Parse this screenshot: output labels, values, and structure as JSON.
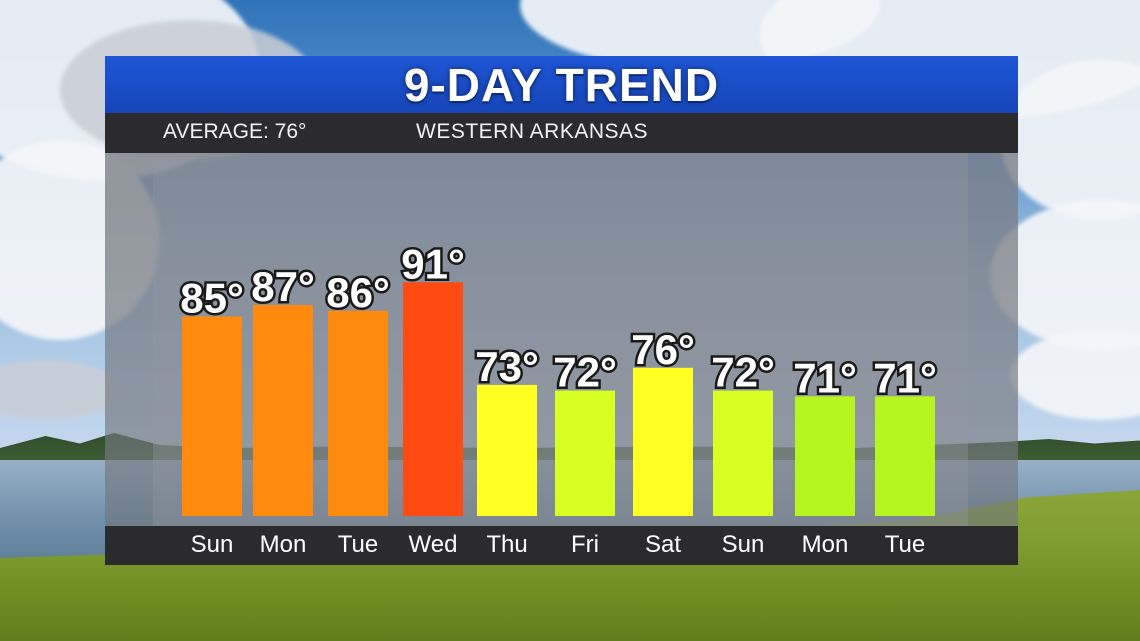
{
  "header": {
    "title": "9-DAY TREND",
    "average": "AVERAGE: 76°",
    "region": "WESTERN ARKANSAS"
  },
  "colors": {
    "title_bar": "#1f56d6",
    "sub_bar": "#2b2b2e"
  },
  "chart_data": {
    "type": "bar",
    "title": "9-DAY TREND",
    "xlabel": "",
    "ylabel": "",
    "ylim": [
      0,
      100
    ],
    "grid": false,
    "categories": [
      "Sun",
      "Mon",
      "Tue",
      "Wed",
      "Thu",
      "Fri",
      "Sat",
      "Sun",
      "Mon",
      "Tue"
    ],
    "values": [
      85,
      87,
      86,
      91,
      73,
      72,
      76,
      72,
      71,
      71
    ],
    "labels": [
      "85°",
      "87°",
      "86°",
      "91°",
      "73°",
      "72°",
      "76°",
      "72°",
      "71°",
      "71°"
    ],
    "bar_colors": [
      "#ff8a0d",
      "#ff8a0d",
      "#ff8a0d",
      "#ff4a12",
      "#ffff22",
      "#d8ff22",
      "#ffff22",
      "#d8ff22",
      "#b6f51f",
      "#b6f51f"
    ]
  }
}
